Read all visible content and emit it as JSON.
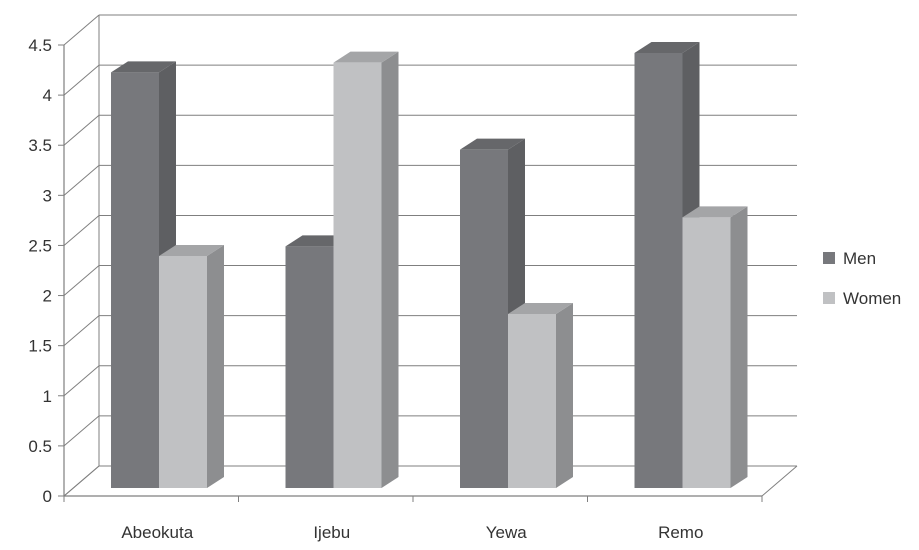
{
  "chart_data": {
    "type": "bar",
    "title": "",
    "xlabel": "",
    "ylabel": "",
    "categories": [
      "Abeokuta",
      "Ijebu",
      "Yewa",
      "Remo"
    ],
    "series": [
      {
        "name": "Men",
        "values": [
          4.3,
          2.5,
          3.5,
          4.5
        ]
      },
      {
        "name": "Women",
        "values": [
          2.4,
          4.4,
          1.8,
          2.8
        ]
      }
    ],
    "ylim": [
      0,
      4.5
    ],
    "yticks": [
      "0",
      "0.5",
      "1",
      "1.5",
      "2",
      "2.5",
      "3",
      "3.5",
      "4",
      "4.5"
    ],
    "grid": true,
    "three_d": true,
    "legend_position": "right",
    "colors": {
      "Men": {
        "front": "#77787c",
        "side": "#5e5f62",
        "top": "#66676a"
      },
      "Women": {
        "front": "#c0c1c3",
        "side": "#8d8e90",
        "top": "#a4a5a7"
      },
      "grid": "#7f7f7f",
      "axis": "#7f7f7f"
    }
  }
}
